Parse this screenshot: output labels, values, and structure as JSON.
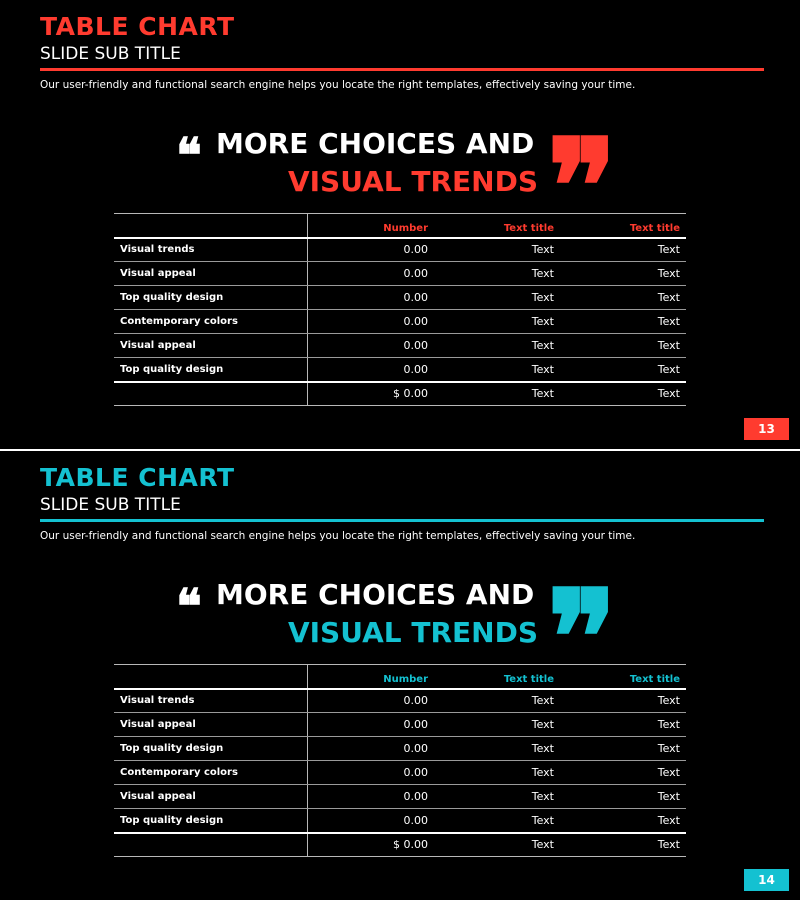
{
  "slides": [
    {
      "accent": "#ff3b2f",
      "title": "TABLE CHART",
      "subtitle": "SLIDE SUB TITLE",
      "intro": "Our user-friendly and functional search engine helps you locate the right templates, effectively saving your time.",
      "quote_open": "❝",
      "heading_line1": "MORE CHOICES AND",
      "heading_line2": "VISUAL TRENDS",
      "quote_close": "❞",
      "table": {
        "headers": [
          "",
          "Number",
          "Text title",
          "Text title"
        ],
        "rows": [
          [
            "Visual trends",
            "0.00",
            "Text",
            "Text"
          ],
          [
            "Visual appeal",
            "0.00",
            "Text",
            "Text"
          ],
          [
            "Top quality design",
            "0.00",
            "Text",
            "Text"
          ],
          [
            "Contemporary colors",
            "0.00",
            "Text",
            "Text"
          ],
          [
            "Visual appeal",
            "0.00",
            "Text",
            "Text"
          ],
          [
            "Top quality design",
            "0.00",
            "Text",
            "Text"
          ]
        ],
        "total": [
          "",
          "$ 0.00",
          "Text",
          "Text"
        ]
      },
      "page_number": "13"
    },
    {
      "accent": "#14c1d1",
      "title": "TABLE CHART",
      "subtitle": "SLIDE SUB TITLE",
      "intro": "Our user-friendly and functional search engine helps you locate the right templates, effectively saving your time.",
      "quote_open": "❝",
      "heading_line1": "MORE CHOICES AND",
      "heading_line2": "VISUAL TRENDS",
      "quote_close": "❞",
      "table": {
        "headers": [
          "",
          "Number",
          "Text title",
          "Text title"
        ],
        "rows": [
          [
            "Visual trends",
            "0.00",
            "Text",
            "Text"
          ],
          [
            "Visual appeal",
            "0.00",
            "Text",
            "Text"
          ],
          [
            "Top quality design",
            "0.00",
            "Text",
            "Text"
          ],
          [
            "Contemporary colors",
            "0.00",
            "Text",
            "Text"
          ],
          [
            "Visual appeal",
            "0.00",
            "Text",
            "Text"
          ],
          [
            "Top quality design",
            "0.00",
            "Text",
            "Text"
          ]
        ],
        "total": [
          "",
          "$ 0.00",
          "Text",
          "Text"
        ]
      },
      "page_number": "14"
    }
  ]
}
